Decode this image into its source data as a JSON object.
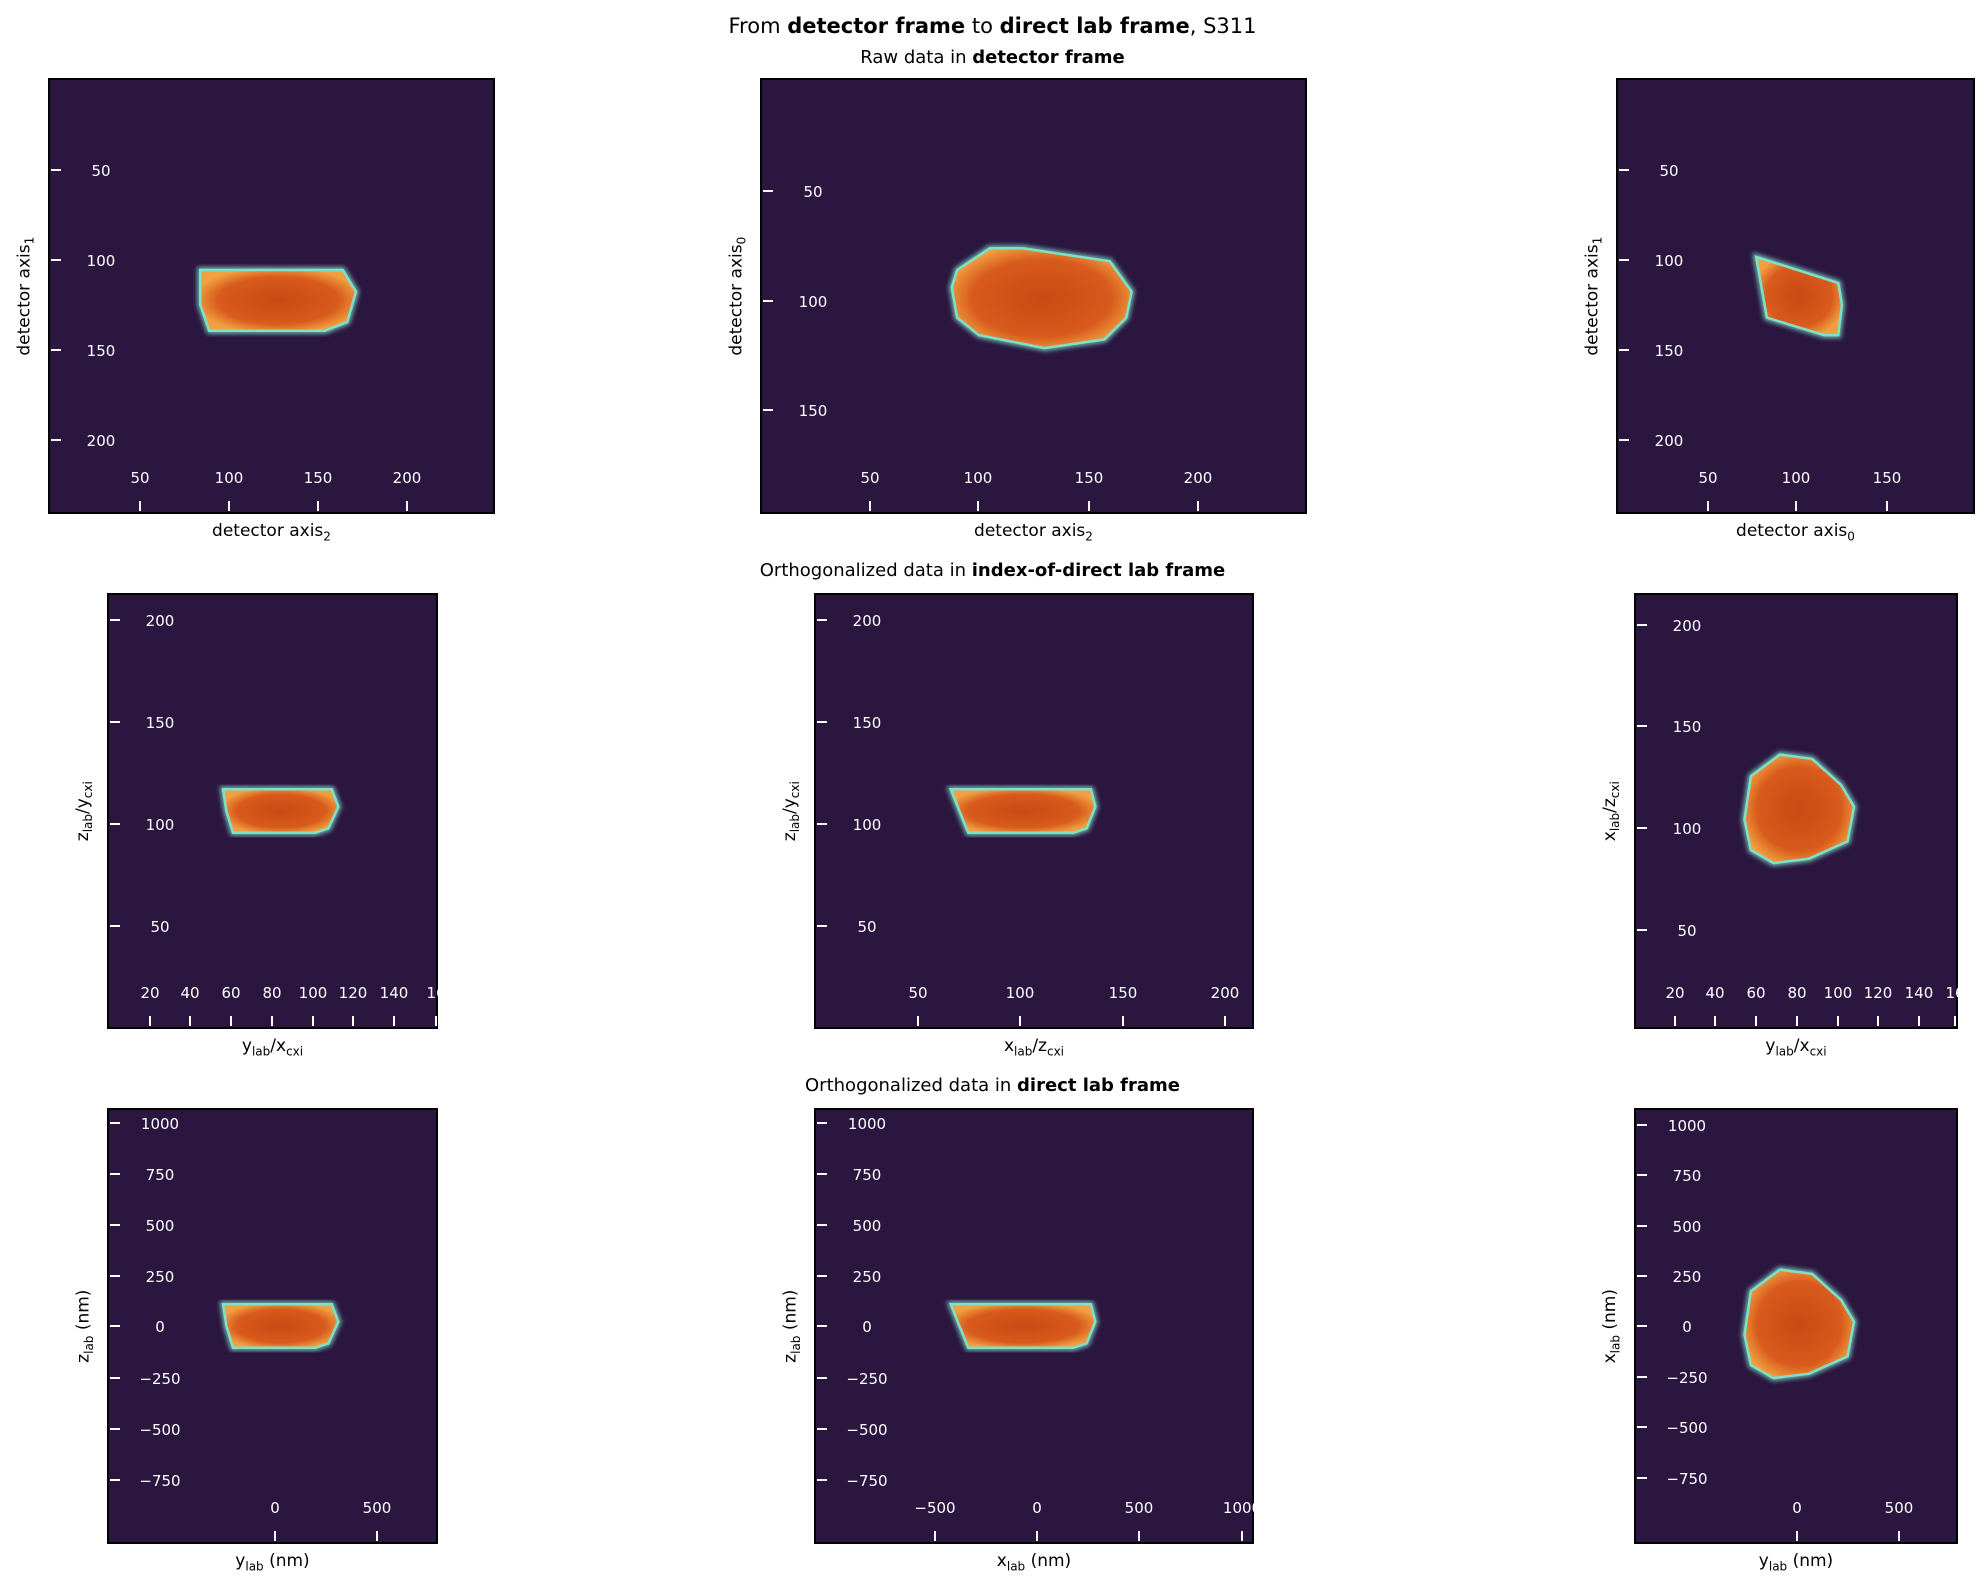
{
  "figure": {
    "title_parts": [
      {
        "text": "From ",
        "bold": false
      },
      {
        "text": "detector frame",
        "bold": true
      },
      {
        "text": " to ",
        "bold": false
      },
      {
        "text": "direct lab frame",
        "bold": true
      },
      {
        "text": ", S311",
        "bold": false
      }
    ],
    "row_titles": [
      [
        {
          "text": "Raw data in ",
          "bold": false
        },
        {
          "text": "detector frame",
          "bold": true
        }
      ],
      [
        {
          "text": "Orthogonalized data in ",
          "bold": false
        },
        {
          "text": "index-of-direct lab frame",
          "bold": true
        }
      ],
      [
        {
          "text": "Orthogonalized data in ",
          "bold": false
        },
        {
          "text": "direct lab frame",
          "bold": true
        }
      ]
    ],
    "colors": {
      "background": "#2b1640",
      "tick": "#ffffff",
      "blob_core": "#c94a14",
      "blob_edge": "#f0a040",
      "rim": "#7fe0c8"
    }
  },
  "chart_data": [
    {
      "type": "heatmap",
      "ylabel": "detector axis",
      "ylabel_sub": "1",
      "xlabel": "detector axis",
      "xlabel_sub": "2",
      "xticks": [
        "50",
        "100",
        "150",
        "200"
      ],
      "yticks": [
        "50",
        "100",
        "150",
        "200"
      ]
    },
    {
      "type": "heatmap",
      "ylabel": "detector axis",
      "ylabel_sub": "0",
      "xlabel": "detector axis",
      "xlabel_sub": "2",
      "xticks": [
        "50",
        "100",
        "150",
        "200"
      ],
      "yticks": [
        "50",
        "100",
        "150"
      ]
    },
    {
      "type": "heatmap",
      "ylabel": "detector axis",
      "ylabel_sub": "1",
      "xlabel": "detector axis",
      "xlabel_sub": "0",
      "xticks": [
        "50",
        "100",
        "150"
      ],
      "yticks": [
        "50",
        "100",
        "150",
        "200"
      ]
    },
    {
      "type": "heatmap",
      "ylabel": "z",
      "ylabel_sub": "lab",
      "ylabel_mid": "/y",
      "ylabel_sub2": "cxi",
      "xlabel": "y",
      "xlabel_sub": "lab",
      "xlabel_mid": "/x",
      "xlabel_sub2": "cxi",
      "xticks": [
        "20",
        "40",
        "60",
        "80",
        "100",
        "120",
        "140",
        "16"
      ],
      "yticks": [
        "200",
        "150",
        "100",
        "50"
      ]
    },
    {
      "type": "heatmap",
      "ylabel": "z",
      "ylabel_sub": "lab",
      "ylabel_mid": "/y",
      "ylabel_sub2": "cxi",
      "xlabel": "x",
      "xlabel_sub": "lab",
      "xlabel_mid": "/z",
      "xlabel_sub2": "cxi",
      "xticks": [
        "50",
        "100",
        "150",
        "200"
      ],
      "yticks": [
        "200",
        "150",
        "100",
        "50"
      ]
    },
    {
      "type": "heatmap",
      "ylabel": "x",
      "ylabel_sub": "lab",
      "ylabel_mid": "/z",
      "ylabel_sub2": "cxi",
      "xlabel": "y",
      "xlabel_sub": "lab",
      "xlabel_mid": "/x",
      "xlabel_sub2": "cxi",
      "xticks": [
        "20",
        "40",
        "60",
        "80",
        "100",
        "120",
        "140",
        "16"
      ],
      "yticks": [
        "200",
        "150",
        "100",
        "50"
      ]
    },
    {
      "type": "heatmap",
      "ylabel": "z",
      "ylabel_sub": "lab",
      "ylabel_mid": " (nm)",
      "xlabel": "y",
      "xlabel_sub": "lab",
      "xlabel_mid": " (nm)",
      "xticks": [
        "0",
        "500"
      ],
      "yticks": [
        "1000",
        "750",
        "500",
        "250",
        "0",
        "−250",
        "−500",
        "−750"
      ]
    },
    {
      "type": "heatmap",
      "ylabel": "z",
      "ylabel_sub": "lab",
      "ylabel_mid": " (nm)",
      "xlabel": "x",
      "xlabel_sub": "lab",
      "xlabel_mid": " (nm)",
      "xticks": [
        "−500",
        "0",
        "500",
        "1000"
      ],
      "yticks": [
        "1000",
        "750",
        "500",
        "250",
        "0",
        "−250",
        "−500",
        "−750"
      ]
    },
    {
      "type": "heatmap",
      "ylabel": "x",
      "ylabel_sub": "lab",
      "ylabel_mid": " (nm)",
      "xlabel": "y",
      "xlabel_sub": "lab",
      "xlabel_mid": " (nm)",
      "xticks": [
        "0",
        "500"
      ],
      "yticks": [
        "1000",
        "750",
        "500",
        "250",
        "0",
        "−250",
        "−500",
        "−750"
      ]
    }
  ]
}
